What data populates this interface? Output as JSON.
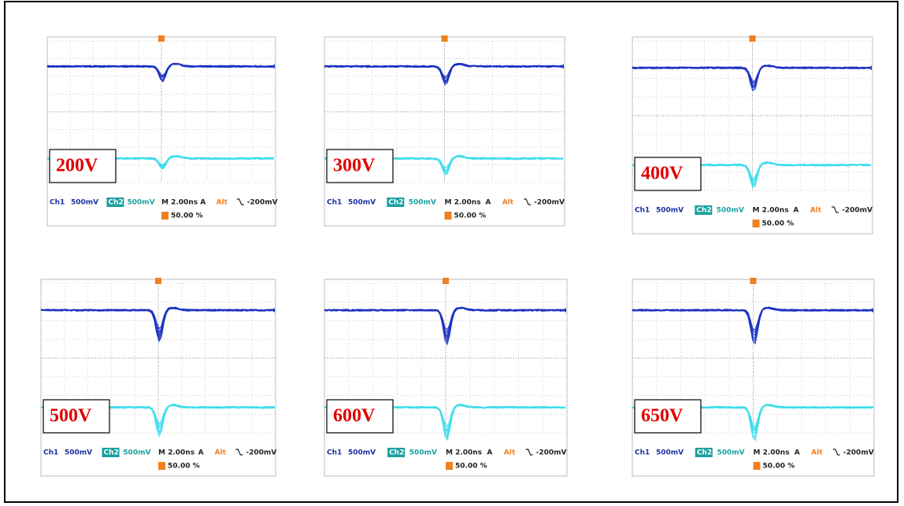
{
  "panels": [
    {
      "label": "200V",
      "readout": {
        "ch1": "Ch1",
        "ch1_scale": "500mV",
        "ch2": "Ch2",
        "ch2_scale": "500mV",
        "timebase": "M 2.00ns",
        "trigger_mode": "A",
        "trigger_source": "Alt",
        "trigger_level": "-200mV",
        "position": "50.00 %"
      }
    },
    {
      "label": "300V",
      "readout": {
        "ch1": "Ch1",
        "ch1_scale": "500mV",
        "ch2": "Ch2",
        "ch2_scale": "500mV",
        "timebase": "M 2.00ns",
        "trigger_mode": "A",
        "trigger_source": "Alt",
        "trigger_level": "-200mV",
        "position": "50.00 %"
      }
    },
    {
      "label": "400V",
      "readout": {
        "ch1": "Ch1",
        "ch1_scale": "500mV",
        "ch2": "Ch2",
        "ch2_scale": "500mV",
        "timebase": "M 2.00ns",
        "trigger_mode": "A",
        "trigger_source": "Alt",
        "trigger_level": "-200mV",
        "position": "50.00 %"
      }
    },
    {
      "label": "500V",
      "readout": {
        "ch1": "Ch1",
        "ch1_scale": "500mV",
        "ch2": "Ch2",
        "ch2_scale": "500mV",
        "timebase": "M 2.00ns",
        "trigger_mode": "A",
        "trigger_source": "Alt",
        "trigger_level": "-200mV",
        "position": "50.00 %"
      }
    },
    {
      "label": "600V",
      "readout": {
        "ch1": "Ch1",
        "ch1_scale": "500mV",
        "ch2": "Ch2",
        "ch2_scale": "500mV",
        "timebase": "M 2.00ns",
        "trigger_mode": "A",
        "trigger_source": "Alt",
        "trigger_level": "-200mV",
        "position": "50.00 %"
      }
    },
    {
      "label": "650V",
      "readout": {
        "ch1": "Ch1",
        "ch1_scale": "500mV",
        "ch2": "Ch2",
        "ch2_scale": "500mV",
        "timebase": "M 2.00ns",
        "trigger_mode": "A",
        "trigger_source": "Alt",
        "trigger_level": "-200mV",
        "position": "50.00 %"
      }
    }
  ]
}
